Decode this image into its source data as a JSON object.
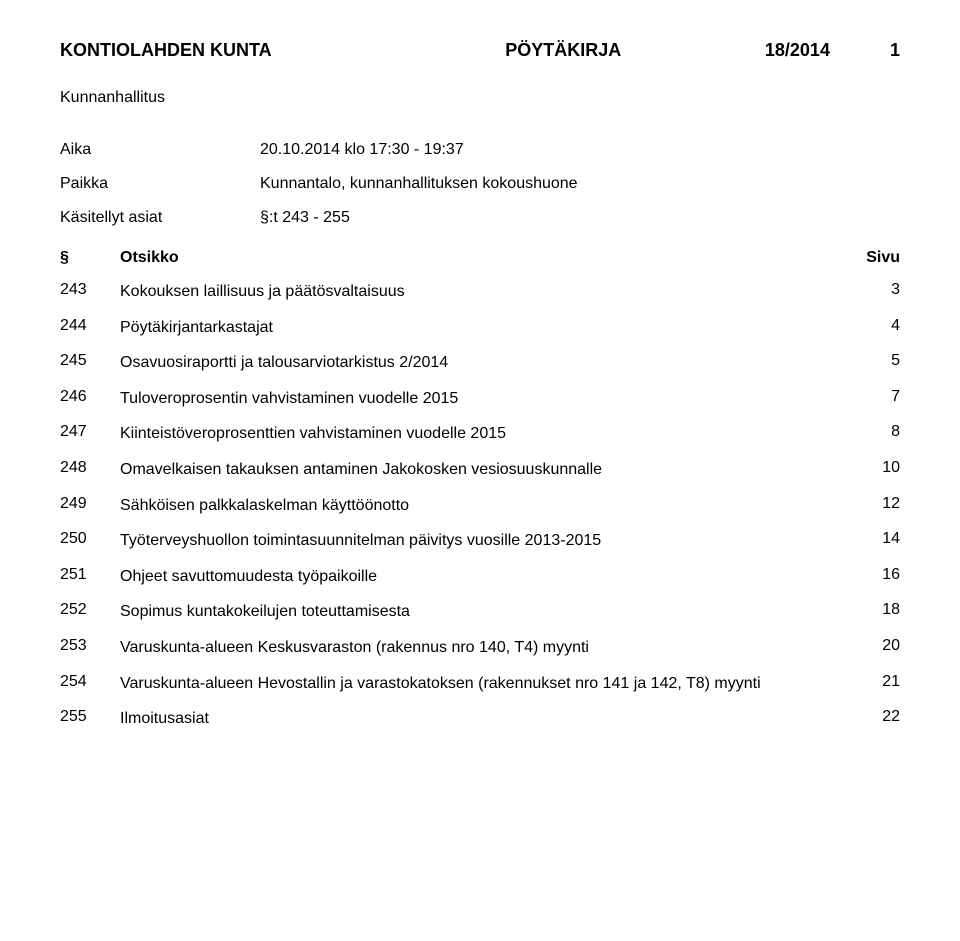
{
  "header": {
    "org": "KONTIOLAHDEN KUNTA",
    "doctype": "PÖYTÄKIRJA",
    "docnum": "18/2014",
    "pagenum": "1"
  },
  "subtitle": "Kunnanhallitus",
  "meta": {
    "aika_label": "Aika",
    "aika_value": "20.10.2014 klo 17:30 - 19:37",
    "paikka_label": "Paikka",
    "paikka_value": "Kunnantalo, kunnanhallituksen kokoushuone",
    "kasitellyt_label": "Käsitellyt asiat",
    "kasitellyt_value": "§:t 243 - 255"
  },
  "table": {
    "header": {
      "sym": "§",
      "title": "Otsikko",
      "page": "Sivu"
    },
    "rows": [
      {
        "num": "243",
        "title": "Kokouksen laillisuus ja päätösvaltaisuus",
        "page": "3"
      },
      {
        "num": "244",
        "title": "Pöytäkirjantarkastajat",
        "page": "4"
      },
      {
        "num": "245",
        "title": "Osavuosiraportti ja talousarviotarkistus 2/2014",
        "page": "5"
      },
      {
        "num": "246",
        "title": "Tuloveroprosentin vahvistaminen vuodelle 2015",
        "page": "7"
      },
      {
        "num": "247",
        "title": "Kiinteistöveroprosenttien vahvistaminen vuodelle 2015",
        "page": "8"
      },
      {
        "num": "248",
        "title": "Omavelkaisen takauksen antaminen Jakokosken vesiosuuskunnalle",
        "page": "10"
      },
      {
        "num": "249",
        "title": "Sähköisen palkkalaskelman käyttöönotto",
        "page": "12"
      },
      {
        "num": "250",
        "title": "Työterveyshuollon toimintasuunnitelman päivitys vuosille 2013-2015",
        "page": "14"
      },
      {
        "num": "251",
        "title": "Ohjeet savuttomuudesta työpaikoille",
        "page": "16"
      },
      {
        "num": "252",
        "title": "Sopimus kuntakokeilujen toteuttamisesta",
        "page": "18"
      },
      {
        "num": "253",
        "title": "Varuskunta-alueen Keskusvaraston (rakennus nro 140, T4) myynti",
        "page": "20"
      },
      {
        "num": "254",
        "title": "Varuskunta-alueen Hevostallin ja varastokatoksen (rakennukset nro 141 ja 142, T8) myynti",
        "page": "21"
      },
      {
        "num": "255",
        "title": "Ilmoitusasiat",
        "page": "22"
      }
    ]
  }
}
